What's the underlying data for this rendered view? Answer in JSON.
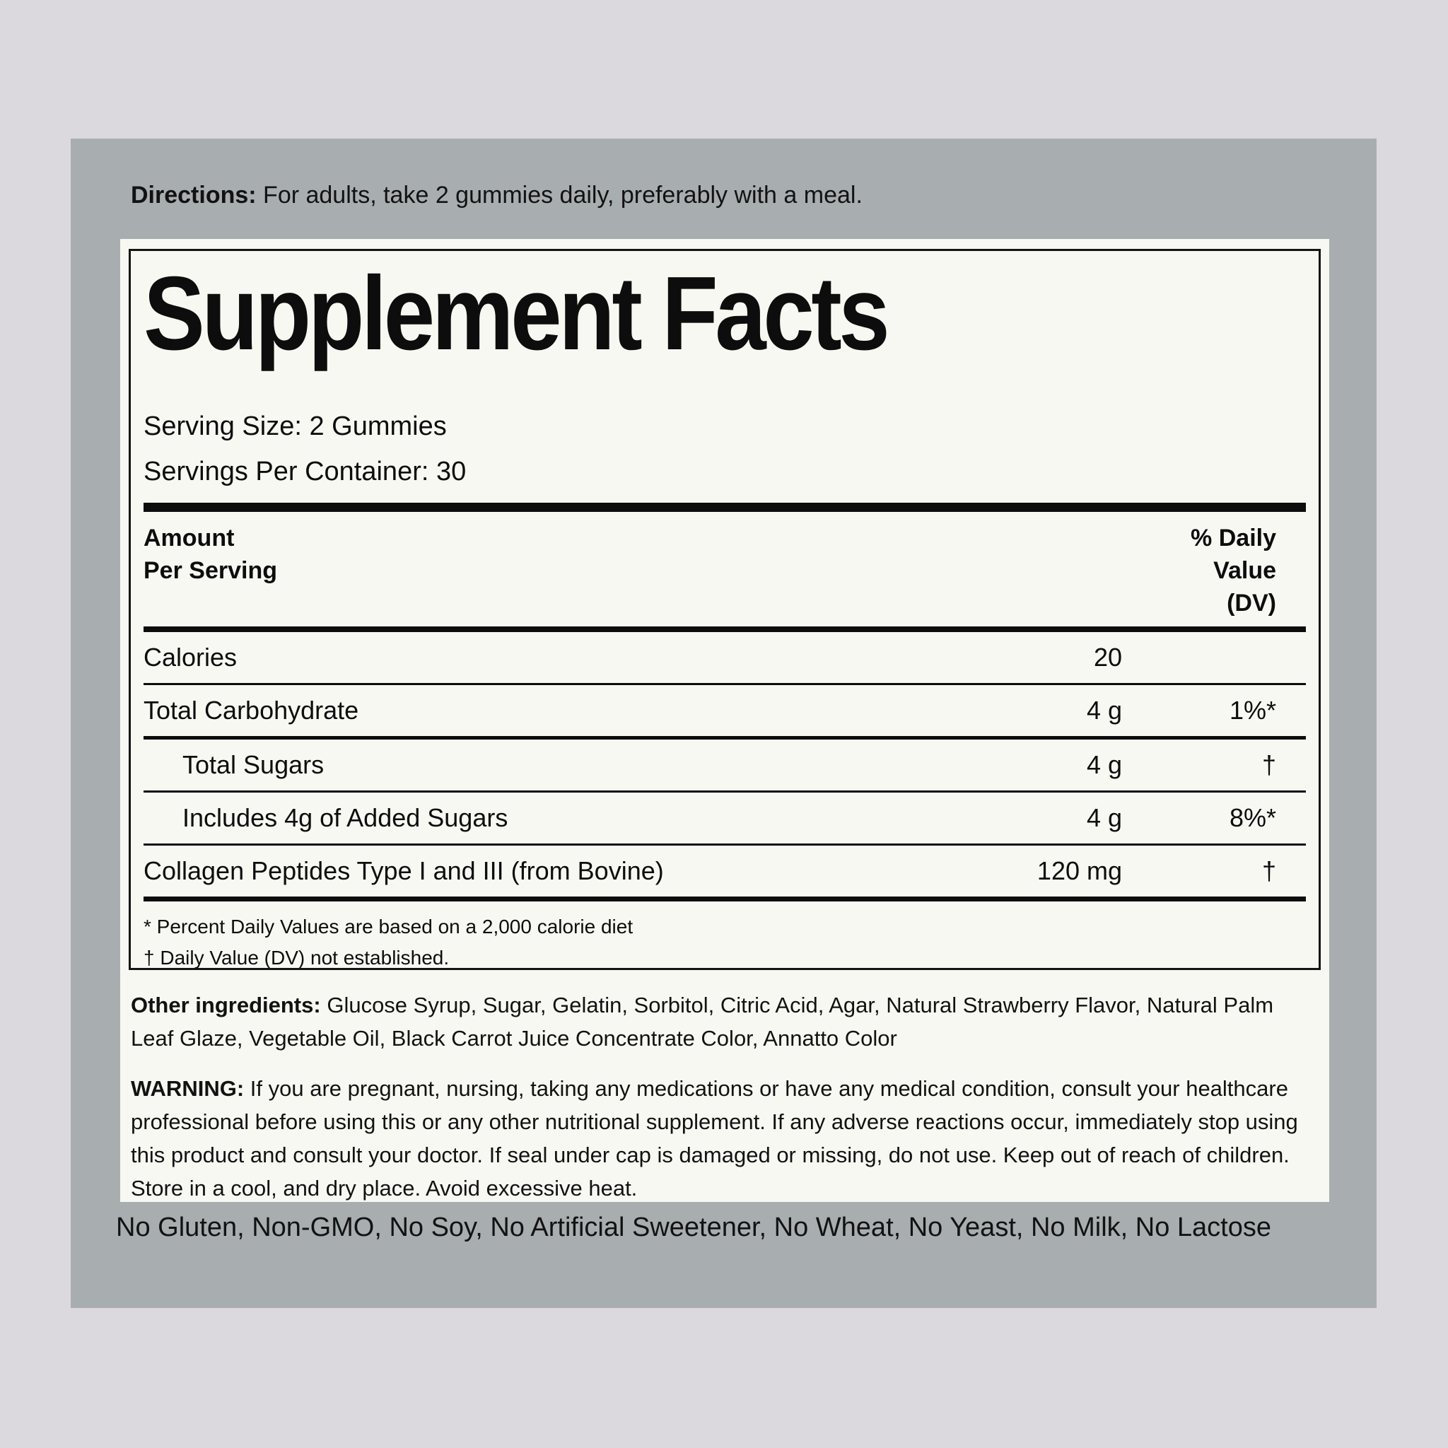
{
  "directions": {
    "label": "Directions:",
    "text": "For adults, take 2 gummies daily, preferably with a meal."
  },
  "panel": {
    "title": "Supplement Facts",
    "serving_size": "Serving Size: 2 Gummies",
    "servings_per_container": "Servings Per Container: 30"
  },
  "table": {
    "header_left": "Amount\nPer Serving",
    "header_right": "% Daily\nValue\n(DV)",
    "rows": [
      {
        "name": "Calories",
        "amount": "20",
        "dv": ""
      },
      {
        "name": "Total Carbohydrate",
        "amount": "4 g",
        "dv": "1%*"
      },
      {
        "name": "Total Sugars",
        "amount": "4 g",
        "dv": "†"
      },
      {
        "name": "Includes 4g of Added Sugars",
        "amount": "4 g",
        "dv": "8%*"
      },
      {
        "name": "Collagen Peptides Type I and III (from Bovine)",
        "amount": "120 mg",
        "dv": "†"
      }
    ],
    "footnotes": [
      "* Percent Daily Values are based on a 2,000 calorie diet",
      "† Daily Value (DV) not established."
    ]
  },
  "other_ingredients": {
    "label": "Other ingredients:",
    "text": "Glucose Syrup, Sugar, Gelatin, Sorbitol, Citric Acid, Agar, Natural Strawberry Flavor, Natural Palm Leaf Glaze, Vegetable Oil, Black Carrot Juice Concentrate Color, Annatto Color"
  },
  "warning": {
    "label": "WARNING:",
    "text": "If you are pregnant, nursing, taking any medications or have any medical condition, consult your healthcare professional before using this or any other nutritional supplement. If any adverse reactions occur, immediately stop using this product and consult your doctor. If seal under cap is damaged or missing, do not use. Keep out of reach of children. Store in a cool, and dry place. Avoid excessive heat."
  },
  "claims": "No Gluten, Non-GMO, No Soy, No Artificial Sweetener, No Wheat, No Yeast, No Milk, No Lactose",
  "colors": {
    "outer_background": "#dbd9dd",
    "panel_gray": "#a8adb0",
    "label_offwhite": "#f8f8f3",
    "ink_black": "#0d0d0d"
  }
}
